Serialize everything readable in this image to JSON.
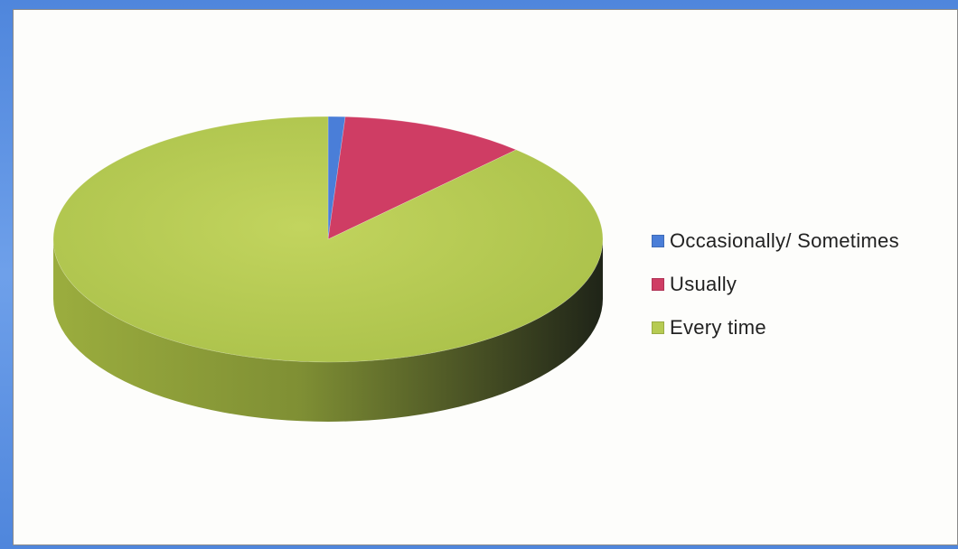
{
  "chart_data": {
    "type": "pie",
    "style": "3d",
    "categories": [
      "Occasionally/ Sometimes",
      "Usually",
      "Every time"
    ],
    "values": [
      1,
      11,
      88
    ],
    "colors": [
      "#4a7ed8",
      "#cf3d64",
      "#b6cb52"
    ],
    "legend_position": "right"
  }
}
